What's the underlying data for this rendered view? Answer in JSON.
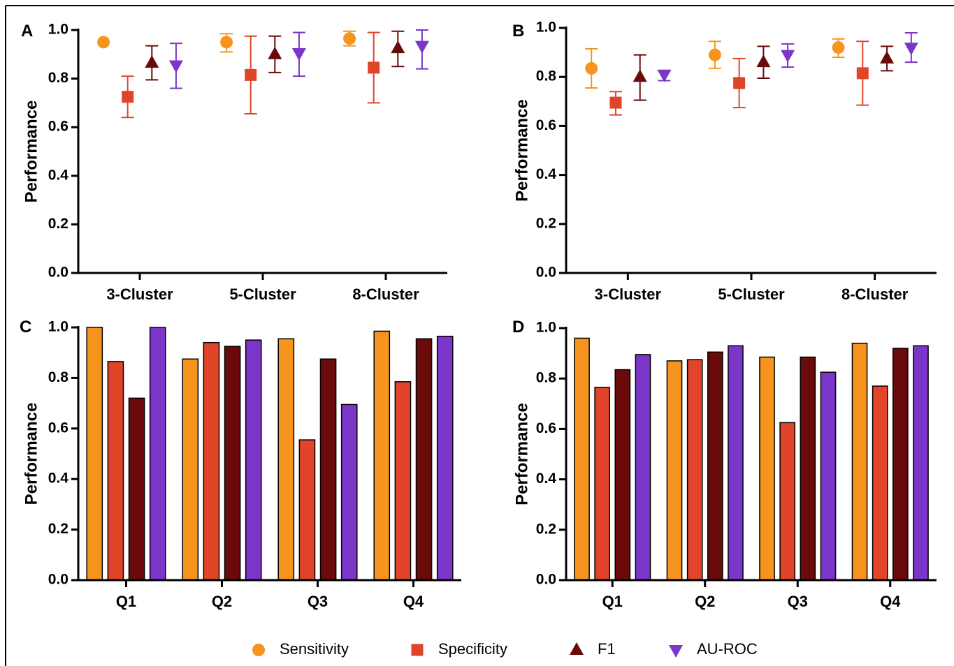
{
  "colors": {
    "Sensitivity": "#F7941D",
    "Specificity": "#E0452A",
    "F1": "#6B0A0A",
    "AU-ROC": "#7B35C8"
  },
  "legend": [
    {
      "name": "Sensitivity",
      "marker": "circle"
    },
    {
      "name": "Specificity",
      "marker": "square"
    },
    {
      "name": "F1",
      "marker": "triangle-up"
    },
    {
      "name": "AU-ROC",
      "marker": "triangle-down"
    }
  ],
  "chart_data": [
    {
      "panel": "A",
      "type": "scatter",
      "ylabel": "Performance",
      "ylim": [
        0,
        1.0
      ],
      "yticks": [
        "0.0",
        "0.2",
        "0.4",
        "0.6",
        "0.8",
        "1.0"
      ],
      "categories": [
        "3-Cluster",
        "5-Cluster",
        "8-Cluster"
      ],
      "series": [
        {
          "name": "Sensitivity",
          "values": [
            0.95,
            0.95,
            0.965
          ],
          "err_low": [
            0.95,
            0.91,
            0.935
          ],
          "err_high": [
            0.95,
            0.985,
            0.995
          ]
        },
        {
          "name": "Specificity",
          "values": [
            0.725,
            0.815,
            0.845
          ],
          "err_low": [
            0.64,
            0.655,
            0.7
          ],
          "err_high": [
            0.81,
            0.975,
            0.99
          ]
        },
        {
          "name": "F1",
          "values": [
            0.865,
            0.9,
            0.925
          ],
          "err_low": [
            0.795,
            0.825,
            0.85
          ],
          "err_high": [
            0.935,
            0.975,
            0.995
          ]
        },
        {
          "name": "AU-ROC",
          "values": [
            0.855,
            0.905,
            0.935
          ],
          "err_low": [
            0.76,
            0.81,
            0.84
          ],
          "err_high": [
            0.945,
            0.99,
            1.0
          ]
        }
      ]
    },
    {
      "panel": "B",
      "type": "scatter",
      "ylabel": "Performance",
      "ylim": [
        0,
        1.0
      ],
      "yticks": [
        "0.0",
        "0.2",
        "0.4",
        "0.6",
        "0.8",
        "1.0"
      ],
      "categories": [
        "3-Cluster",
        "5-Cluster",
        "8-Cluster"
      ],
      "series": [
        {
          "name": "Sensitivity",
          "values": [
            0.835,
            0.89,
            0.92
          ],
          "err_low": [
            0.755,
            0.835,
            0.88
          ],
          "err_high": [
            0.915,
            0.945,
            0.955
          ]
        },
        {
          "name": "Specificity",
          "values": [
            0.695,
            0.775,
            0.815
          ],
          "err_low": [
            0.645,
            0.675,
            0.685
          ],
          "err_high": [
            0.74,
            0.875,
            0.945
          ]
        },
        {
          "name": "F1",
          "values": [
            0.8,
            0.86,
            0.875
          ],
          "err_low": [
            0.705,
            0.795,
            0.825
          ],
          "err_high": [
            0.89,
            0.925,
            0.925
          ]
        },
        {
          "name": "AU-ROC",
          "values": [
            0.81,
            0.89,
            0.92
          ],
          "err_low": [
            0.785,
            0.84,
            0.86
          ],
          "err_high": [
            0.825,
            0.935,
            0.98
          ]
        }
      ]
    },
    {
      "panel": "C",
      "type": "bar",
      "ylabel": "Performance",
      "ylim": [
        0,
        1.0
      ],
      "yticks": [
        "0.0",
        "0.2",
        "0.4",
        "0.6",
        "0.8",
        "1.0"
      ],
      "categories": [
        "Q1",
        "Q2",
        "Q3",
        "Q4"
      ],
      "series": [
        {
          "name": "Sensitivity",
          "values": [
            1.0,
            0.875,
            0.955,
            0.985
          ]
        },
        {
          "name": "Specificity",
          "values": [
            0.865,
            0.94,
            0.555,
            0.785
          ]
        },
        {
          "name": "F1",
          "values": [
            0.72,
            0.925,
            0.875,
            0.955
          ]
        },
        {
          "name": "AU-ROC",
          "values": [
            1.0,
            0.95,
            0.695,
            0.965
          ]
        }
      ]
    },
    {
      "panel": "D",
      "type": "bar",
      "ylabel": "Performance",
      "ylim": [
        0,
        1.0
      ],
      "yticks": [
        "0.0",
        "0.2",
        "0.4",
        "0.6",
        "0.8",
        "1.0"
      ],
      "categories": [
        "Q1",
        "Q2",
        "Q3",
        "Q4"
      ],
      "series": [
        {
          "name": "Sensitivity",
          "values": [
            0.96,
            0.87,
            0.885,
            0.94
          ]
        },
        {
          "name": "Specificity",
          "values": [
            0.765,
            0.875,
            0.625,
            0.77
          ]
        },
        {
          "name": "F1",
          "values": [
            0.835,
            0.905,
            0.885,
            0.92
          ]
        },
        {
          "name": "AU-ROC",
          "values": [
            0.895,
            0.93,
            0.825,
            0.93
          ]
        }
      ]
    }
  ]
}
